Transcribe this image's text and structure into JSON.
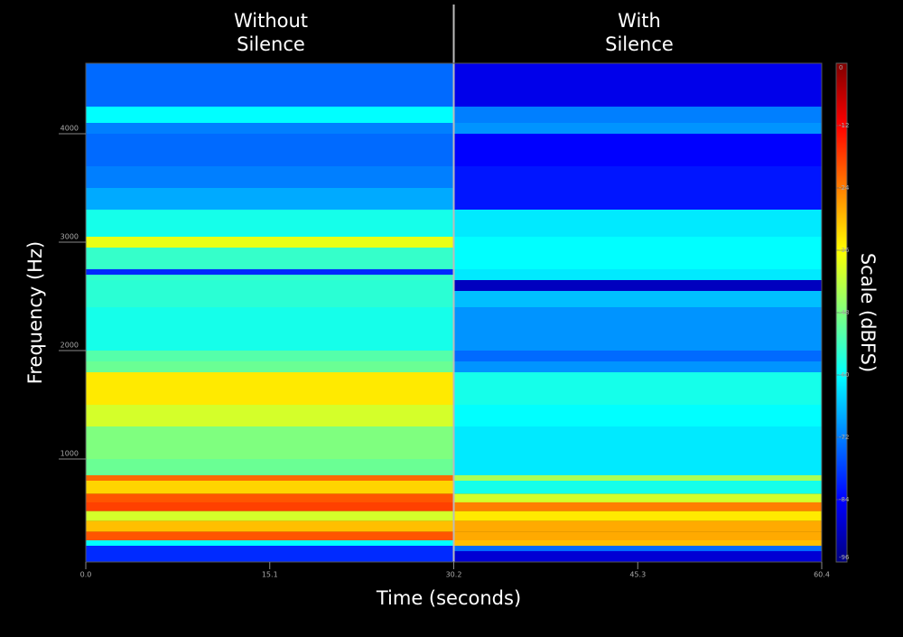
{
  "chart_data": {
    "type": "heatmap",
    "x_label": "Time (seconds)",
    "y_label": "Frequency (Hz)",
    "colorbar_label": "Scale (dBFS)",
    "xlim": [
      0,
      60.4
    ],
    "xticks": [
      {
        "value": 0,
        "label": "0.0"
      },
      15.1,
      30.2,
      45.3,
      60.4
    ],
    "ylim": [
      50,
      4650
    ],
    "yticks": [
      1000,
      2000,
      3000,
      4000
    ],
    "clim": [
      -96,
      0
    ],
    "cticks": [
      0,
      -12,
      -24,
      -36,
      -48,
      -60,
      -72,
      -84,
      -96
    ],
    "colormap": [
      "#00007f",
      "#0000ff",
      "#007fff",
      "#00ffff",
      "#7fff7f",
      "#ffff00",
      "#ff7f00",
      "#ff0000",
      "#7f0000"
    ],
    "y_bins": [
      50,
      150,
      200,
      250,
      330,
      430,
      520,
      600,
      680,
      800,
      850,
      1000,
      1300,
      1500,
      1800,
      1900,
      2000,
      2400,
      2550,
      2650,
      2700,
      2750,
      2950,
      3050,
      3300,
      3500,
      3700,
      4000,
      4100,
      4250,
      4650
    ],
    "series": [
      {
        "name": "Without Silence",
        "x_range": [
          0,
          30.2
        ],
        "values": [
          -80,
          -80,
          -60,
          -20,
          -30,
          -40,
          -18,
          -20,
          -32,
          -22,
          -50,
          -48,
          -40,
          -34,
          -50,
          -52,
          -58,
          -56,
          -56,
          -55,
          -80,
          -55,
          -38,
          -58,
          -68,
          -72,
          -74,
          -72,
          -60,
          -74
        ]
      },
      {
        "name": "With Silence",
        "x_range": [
          30.2,
          60.4
        ],
        "values": [
          -88,
          -74,
          -30,
          -28,
          -28,
          -34,
          -24,
          -40,
          -58,
          -44,
          -62,
          -62,
          -60,
          -58,
          -70,
          -74,
          -70,
          -66,
          -90,
          -62,
          -62,
          -60,
          -60,
          -62,
          -82,
          -82,
          -84,
          -70,
          -72,
          -86
        ]
      }
    ]
  }
}
